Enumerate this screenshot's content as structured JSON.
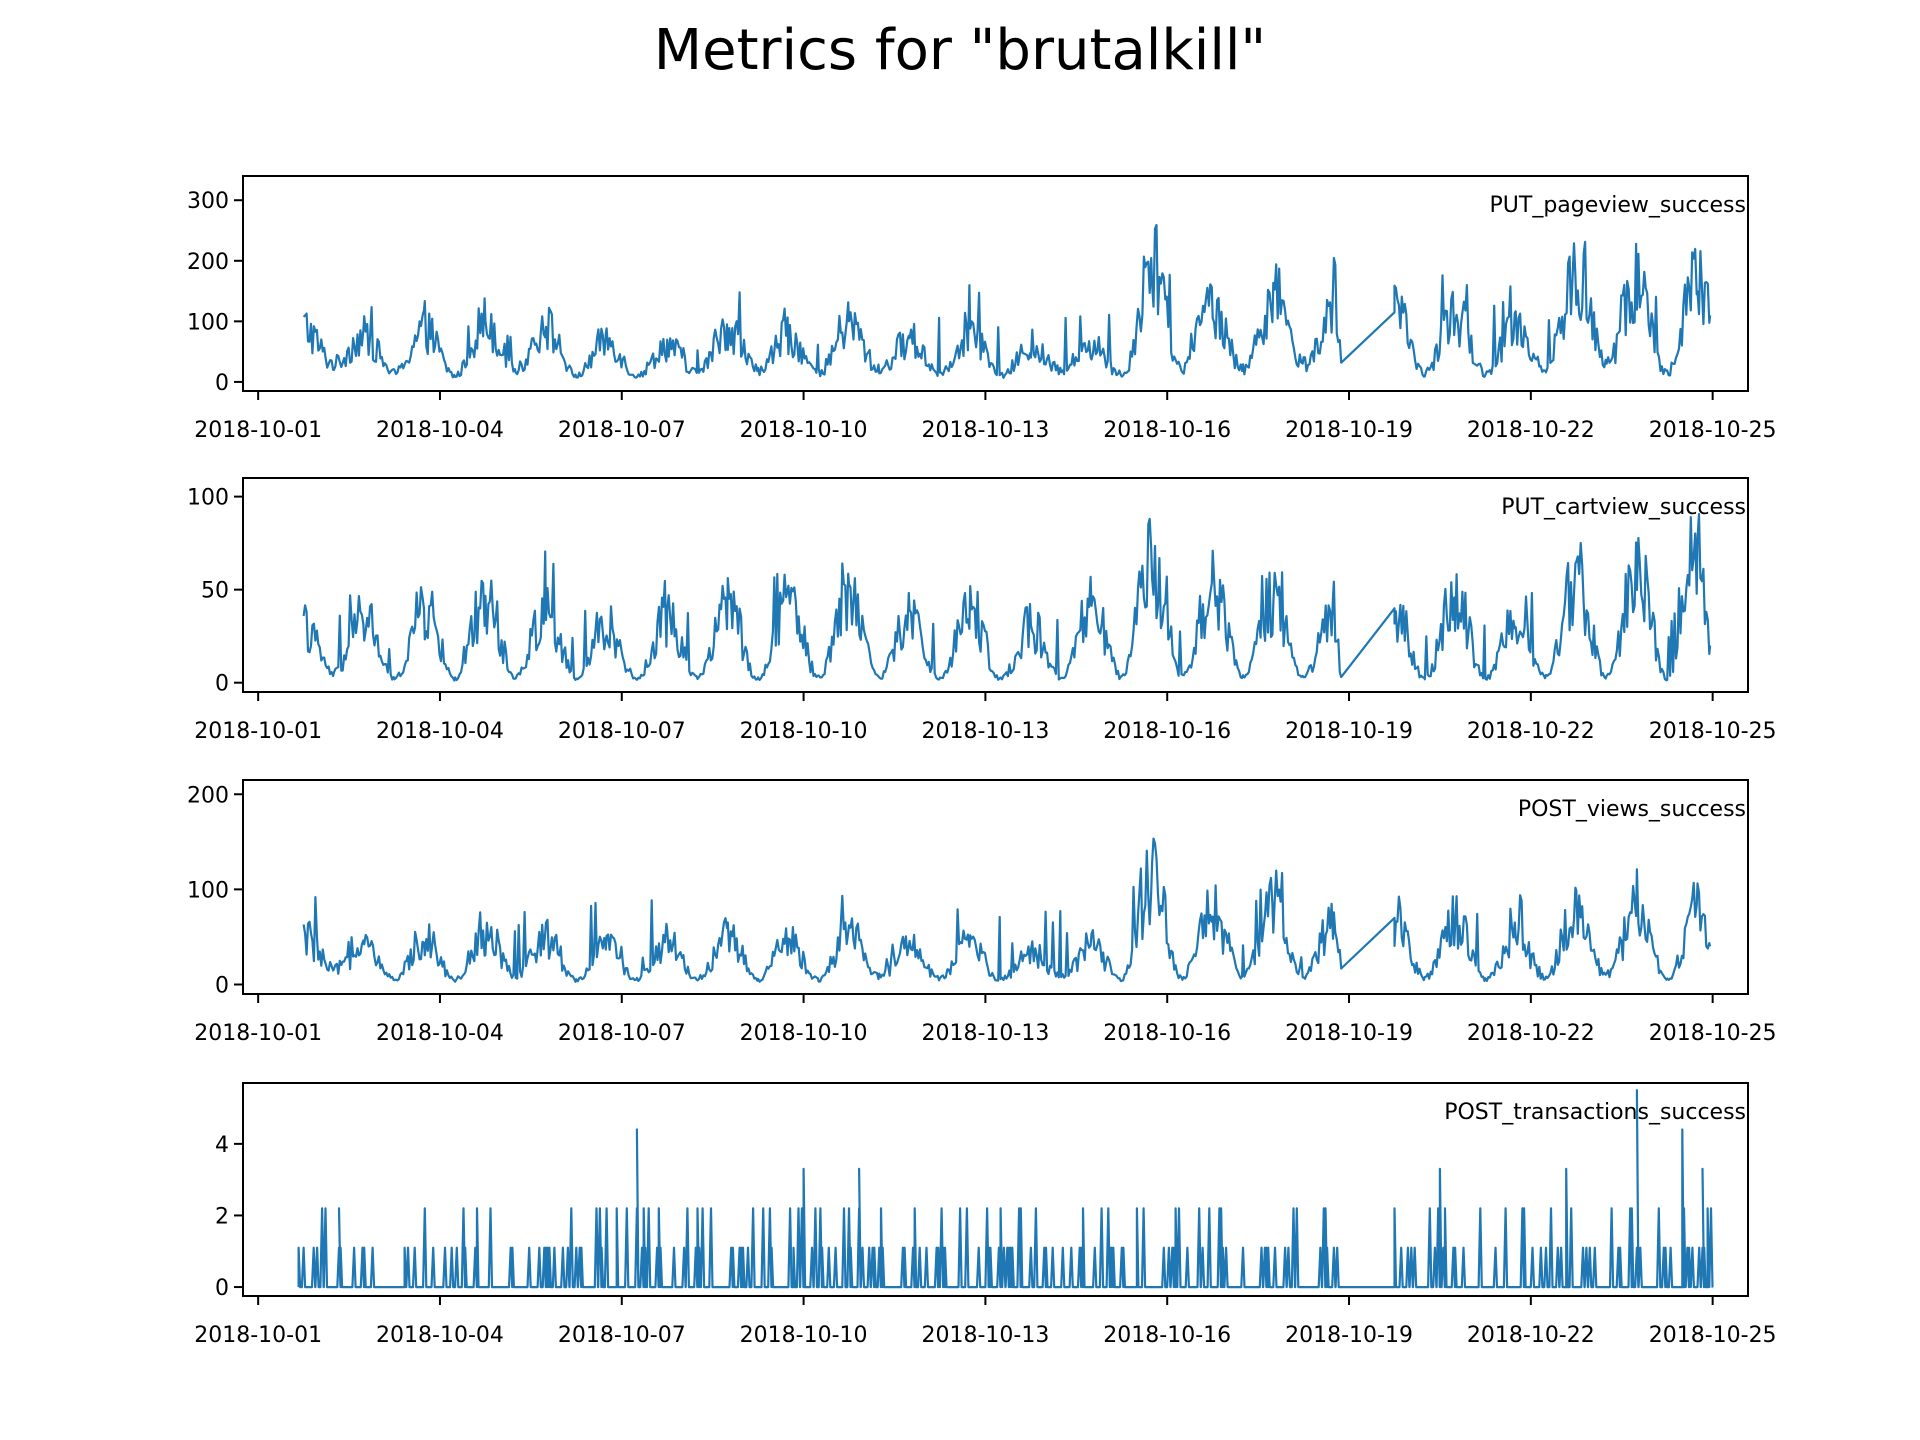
{
  "title": "Metrics for \"brutalkill\"",
  "chart_data": [
    {
      "type": "line",
      "series_label": "PUT_pageview_success",
      "color": "#1f77b4",
      "ylim": [
        -15,
        340
      ],
      "yticks": [
        0,
        100,
        200,
        300
      ],
      "ytick_labels": [
        "0",
        "100",
        "200",
        "300"
      ],
      "xlim": [
        "2018-09-30T18:00",
        "2018-10-25T14:00"
      ],
      "xticks": [
        "2018-10-01",
        "2018-10-04",
        "2018-10-07",
        "2018-10-10",
        "2018-10-13",
        "2018-10-16",
        "2018-10-19",
        "2018-10-22",
        "2018-10-25"
      ],
      "x": [
        "2018-10-01T18:00",
        "2018-10-02T06:00",
        "2018-10-02T18:00",
        "2018-10-03T06:00",
        "2018-10-03T18:00",
        "2018-10-04T06:00",
        "2018-10-04T18:00",
        "2018-10-05T06:00",
        "2018-10-05T18:00",
        "2018-10-06T06:00",
        "2018-10-06T18:00",
        "2018-10-07T06:00",
        "2018-10-07T18:00",
        "2018-10-08T06:00",
        "2018-10-08T18:00",
        "2018-10-09T06:00",
        "2018-10-09T18:00",
        "2018-10-10T06:00",
        "2018-10-10T18:00",
        "2018-10-11T06:00",
        "2018-10-11T18:00",
        "2018-10-12T06:00",
        "2018-10-12T18:00",
        "2018-10-13T06:00",
        "2018-10-13T18:00",
        "2018-10-14T06:00",
        "2018-10-14T18:00",
        "2018-10-15T06:00",
        "2018-10-15T18:00",
        "2018-10-16T06:00",
        "2018-10-16T18:00",
        "2018-10-17T06:00",
        "2018-10-17T18:00",
        "2018-10-18T06:00",
        "2018-10-18T18:00",
        "2018-10-18T21:00",
        "2018-10-19T18:00",
        "2018-10-20T06:00",
        "2018-10-20T18:00",
        "2018-10-21T06:00",
        "2018-10-21T18:00",
        "2018-10-22T06:00",
        "2018-10-22T18:00",
        "2018-10-23T06:00",
        "2018-10-23T18:00",
        "2018-10-24T06:00",
        "2018-10-24T18:00",
        "2018-10-24T23:00"
      ],
      "y": [
        90,
        30,
        75,
        15,
        85,
        10,
        100,
        20,
        90,
        10,
        70,
        10,
        60,
        15,
        90,
        20,
        75,
        15,
        95,
        20,
        70,
        15,
        85,
        10,
        55,
        20,
        60,
        10,
        180,
        20,
        130,
        20,
        140,
        30,
        110,
        40,
        115,
        15,
        110,
        15,
        95,
        20,
        170,
        30,
        160,
        15,
        170,
        110
      ]
    },
    {
      "type": "line",
      "series_label": "PUT_cartview_success",
      "color": "#1f77b4",
      "ylim": [
        -5,
        110
      ],
      "yticks": [
        0,
        50,
        100
      ],
      "ytick_labels": [
        "0",
        "50",
        "100"
      ],
      "xlim": [
        "2018-09-30T18:00",
        "2018-10-25T14:00"
      ],
      "xticks": [
        "2018-10-01",
        "2018-10-04",
        "2018-10-07",
        "2018-10-10",
        "2018-10-13",
        "2018-10-16",
        "2018-10-19",
        "2018-10-22",
        "2018-10-25"
      ],
      "x": [
        "2018-10-01T18:00",
        "2018-10-02T06:00",
        "2018-10-02T18:00",
        "2018-10-03T06:00",
        "2018-10-03T18:00",
        "2018-10-04T06:00",
        "2018-10-04T18:00",
        "2018-10-05T06:00",
        "2018-10-05T18:00",
        "2018-10-06T06:00",
        "2018-10-06T18:00",
        "2018-10-07T06:00",
        "2018-10-07T18:00",
        "2018-10-08T06:00",
        "2018-10-08T18:00",
        "2018-10-09T06:00",
        "2018-10-09T18:00",
        "2018-10-10T06:00",
        "2018-10-10T18:00",
        "2018-10-11T06:00",
        "2018-10-11T18:00",
        "2018-10-12T06:00",
        "2018-10-12T18:00",
        "2018-10-13T06:00",
        "2018-10-13T18:00",
        "2018-10-14T06:00",
        "2018-10-14T18:00",
        "2018-10-15T06:00",
        "2018-10-15T18:00",
        "2018-10-16T06:00",
        "2018-10-16T18:00",
        "2018-10-17T06:00",
        "2018-10-17T18:00",
        "2018-10-18T06:00",
        "2018-10-18T18:00",
        "2018-10-18T21:00",
        "2018-10-19T18:00",
        "2018-10-20T06:00",
        "2018-10-20T18:00",
        "2018-10-21T06:00",
        "2018-10-21T18:00",
        "2018-10-22T06:00",
        "2018-10-22T18:00",
        "2018-10-23T06:00",
        "2018-10-23T18:00",
        "2018-10-24T06:00",
        "2018-10-24T18:00",
        "2018-10-24T23:00"
      ],
      "y": [
        30,
        5,
        35,
        2,
        40,
        2,
        45,
        3,
        40,
        2,
        30,
        2,
        35,
        3,
        40,
        2,
        45,
        3,
        50,
        3,
        35,
        2,
        40,
        2,
        30,
        2,
        40,
        3,
        65,
        3,
        50,
        3,
        45,
        3,
        40,
        3,
        40,
        2,
        45,
        2,
        35,
        3,
        55,
        3,
        60,
        2,
        70,
        20
      ]
    },
    {
      "type": "line",
      "series_label": "POST_views_success",
      "color": "#1f77b4",
      "ylim": [
        -10,
        215
      ],
      "yticks": [
        0,
        100,
        200
      ],
      "ytick_labels": [
        "0",
        "100",
        "200"
      ],
      "xlim": [
        "2018-09-30T18:00",
        "2018-10-25T14:00"
      ],
      "xticks": [
        "2018-10-01",
        "2018-10-04",
        "2018-10-07",
        "2018-10-10",
        "2018-10-13",
        "2018-10-16",
        "2018-10-19",
        "2018-10-22",
        "2018-10-25"
      ],
      "x": [
        "2018-10-01T18:00",
        "2018-10-02T06:00",
        "2018-10-02T18:00",
        "2018-10-03T06:00",
        "2018-10-03T18:00",
        "2018-10-04T06:00",
        "2018-10-04T18:00",
        "2018-10-05T06:00",
        "2018-10-05T18:00",
        "2018-10-06T06:00",
        "2018-10-06T18:00",
        "2018-10-07T06:00",
        "2018-10-07T18:00",
        "2018-10-08T06:00",
        "2018-10-08T18:00",
        "2018-10-09T06:00",
        "2018-10-09T18:00",
        "2018-10-10T06:00",
        "2018-10-10T18:00",
        "2018-10-11T06:00",
        "2018-10-11T18:00",
        "2018-10-12T06:00",
        "2018-10-12T18:00",
        "2018-10-13T06:00",
        "2018-10-13T18:00",
        "2018-10-14T06:00",
        "2018-10-14T18:00",
        "2018-10-15T06:00",
        "2018-10-15T18:00",
        "2018-10-16T06:00",
        "2018-10-16T18:00",
        "2018-10-17T06:00",
        "2018-10-17T18:00",
        "2018-10-18T06:00",
        "2018-10-18T18:00",
        "2018-10-18T21:00",
        "2018-10-19T18:00",
        "2018-10-20T06:00",
        "2018-10-20T18:00",
        "2018-10-21T06:00",
        "2018-10-21T18:00",
        "2018-10-22T06:00",
        "2018-10-22T18:00",
        "2018-10-23T06:00",
        "2018-10-23T18:00",
        "2018-10-24T06:00",
        "2018-10-24T18:00",
        "2018-10-24T23:00"
      ],
      "y": [
        50,
        15,
        40,
        5,
        50,
        5,
        55,
        8,
        50,
        5,
        40,
        5,
        45,
        6,
        50,
        5,
        45,
        5,
        55,
        8,
        40,
        6,
        45,
        5,
        35,
        8,
        40,
        5,
        110,
        8,
        75,
        8,
        80,
        10,
        65,
        25,
        70,
        8,
        65,
        5,
        50,
        8,
        75,
        10,
        75,
        5,
        80,
        40
      ]
    },
    {
      "type": "line",
      "series_label": "POST_transactions_success",
      "color": "#1f77b4",
      "ylim": [
        -0.25,
        5.7
      ],
      "yticks": [
        0,
        2,
        4
      ],
      "ytick_labels": [
        "0",
        "2",
        "4"
      ],
      "xlim": [
        "2018-09-30T18:00",
        "2018-10-25T14:00"
      ],
      "xticks": [
        "2018-10-01",
        "2018-10-04",
        "2018-10-07",
        "2018-10-10",
        "2018-10-13",
        "2018-10-16",
        "2018-10-19",
        "2018-10-22",
        "2018-10-25"
      ],
      "x": [
        "2018-10-01T16:00",
        "2018-10-02T08:00",
        "2018-10-03T10:00",
        "2018-10-06T22:00",
        "2018-10-07T06:00",
        "2018-10-09T20:00",
        "2018-10-10T00:00",
        "2018-10-10T22:00",
        "2018-10-13T14:00",
        "2018-10-15T12:00",
        "2018-10-19T18:00",
        "2018-10-20T12:00",
        "2018-10-22T14:00",
        "2018-10-23T16:00",
        "2018-10-23T18:00",
        "2018-10-24T12:00",
        "2018-10-24T20:00",
        "2018-10-24T22:00"
      ],
      "y": [
        1.1,
        2.2,
        1.1,
        2.2,
        4.4,
        1.1,
        3.3,
        3.3,
        2.2,
        2.2,
        2.2,
        3.3,
        3.3,
        2.2,
        5.5,
        4.4,
        3.3,
        2.2
      ]
    }
  ],
  "x_tick_labels": [
    "2018-10-01",
    "2018-10-04",
    "2018-10-07",
    "2018-10-10",
    "2018-10-13",
    "2018-10-16",
    "2018-10-19",
    "2018-10-22",
    "2018-10-25"
  ]
}
